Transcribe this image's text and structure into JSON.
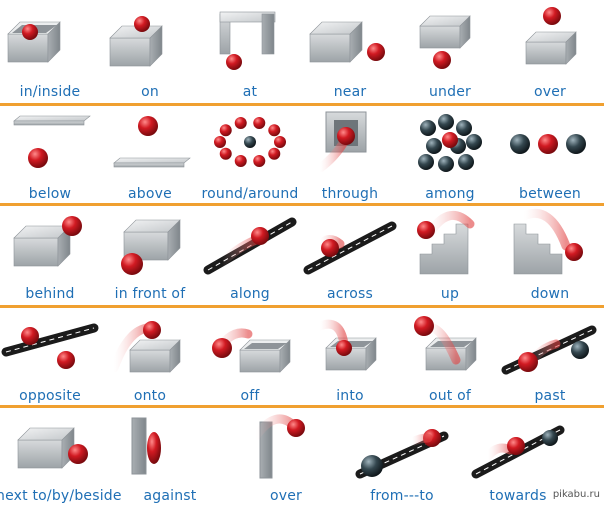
{
  "title": "",
  "rows": [
    [
      "in/inside",
      "on",
      "at",
      "near",
      "under",
      "over"
    ],
    [
      "below",
      "above",
      "round/around",
      "through",
      "among",
      "between"
    ],
    [
      "behind",
      "in front of",
      "along",
      "across",
      "up",
      "down"
    ],
    [
      "opposite",
      "onto",
      "off",
      "into",
      "out of",
      "past"
    ],
    [
      "next to/by/beside",
      "against",
      "over",
      "from---to",
      "towards"
    ]
  ],
  "watermark": "pikabu.ru",
  "colors": {
    "label": "#1f6fb5",
    "separator": "#f0a030",
    "ball_red": "#c8141e",
    "ball_dark": "#2c3e46",
    "box": "#b9bec2"
  }
}
